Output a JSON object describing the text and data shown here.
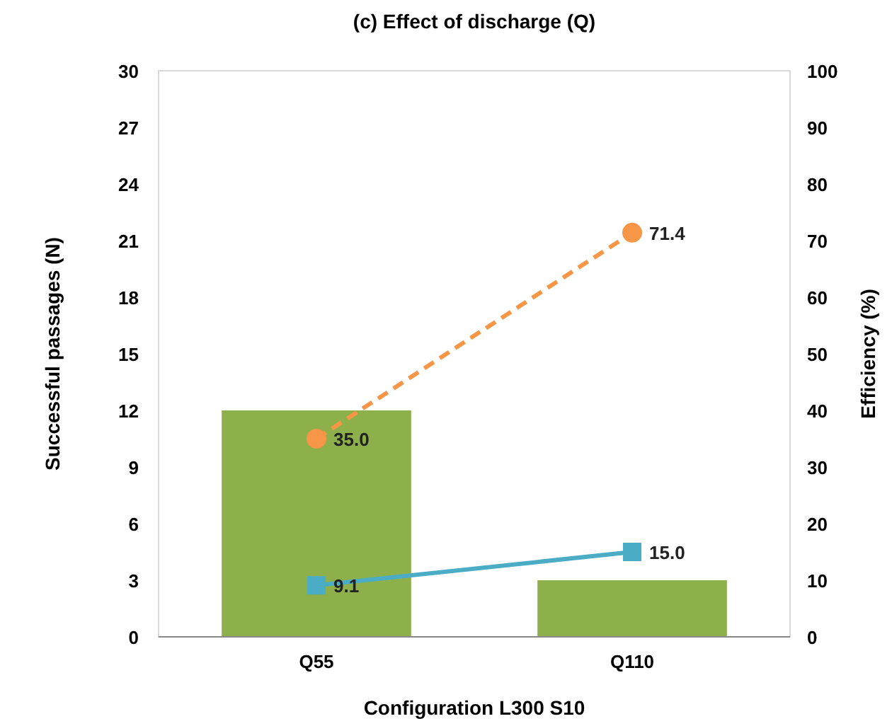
{
  "chart_data": {
    "type": "bar",
    "title": "(c)    Effect of discharge  (Q)",
    "xlabel": "Configuration  L300 S10",
    "ylabel": "Successful passages  (N)",
    "y2label": "Efficiency    (%)",
    "categories": [
      "Q55",
      "Q110"
    ],
    "series": [
      {
        "color": "#8db04a",
        "values": [
          12,
          3
        ]
      },
      {
        "type": "line",
        "axis": "y2",
        "color": "#f79646",
        "values": [
          35.0,
          71.4
        ],
        "value_labels": [
          "35.0",
          "71.4"
        ],
        "marker": "circle",
        "line_style": "dashed"
      },
      {
        "type": "line",
        "axis": "y2",
        "color": "#4bacc6",
        "values": [
          9.1,
          15.0
        ],
        "value_labels": [
          "9.1",
          "15.0"
        ],
        "marker": "square",
        "line_style": "solid"
      }
    ],
    "ylim": [
      0,
      30
    ],
    "yticks": [
      0,
      3,
      6,
      9,
      12,
      15,
      18,
      21,
      24,
      27,
      30
    ],
    "y2lim": [
      0,
      100
    ],
    "y2ticks": [
      0,
      10,
      20,
      30,
      40,
      50,
      60,
      70,
      80,
      90,
      100
    ],
    "grid": false
  }
}
